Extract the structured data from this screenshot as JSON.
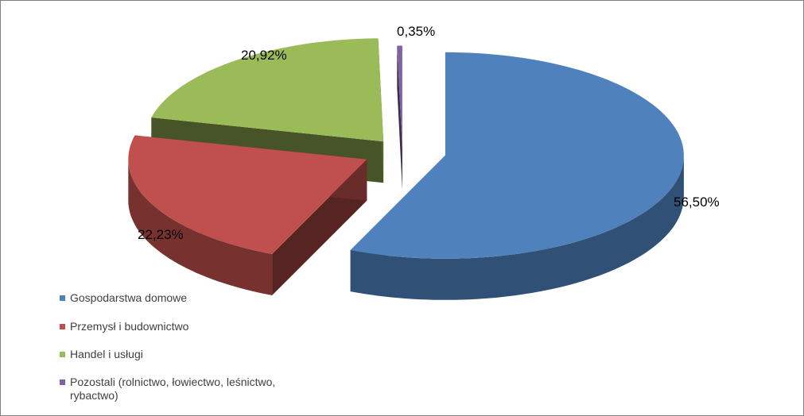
{
  "chart_data": {
    "type": "pie",
    "three_d": true,
    "exploded": true,
    "categories": [
      "Gospodarstwa domowe",
      "Przemysł i budownictwo",
      "Handel i usługi",
      "Pozostali (rolnictwo, łowiectwo, leśnictwo, rybactwo)"
    ],
    "values": [
      56.5,
      22.23,
      20.92,
      0.35
    ],
    "value_labels": [
      "56,50%",
      "22,23%",
      "20,92%",
      "0,35%"
    ],
    "colors": [
      "#4f81bd",
      "#c0504d",
      "#9bbb59",
      "#8064a2"
    ],
    "legend_position": "bottom-left",
    "title": ""
  }
}
